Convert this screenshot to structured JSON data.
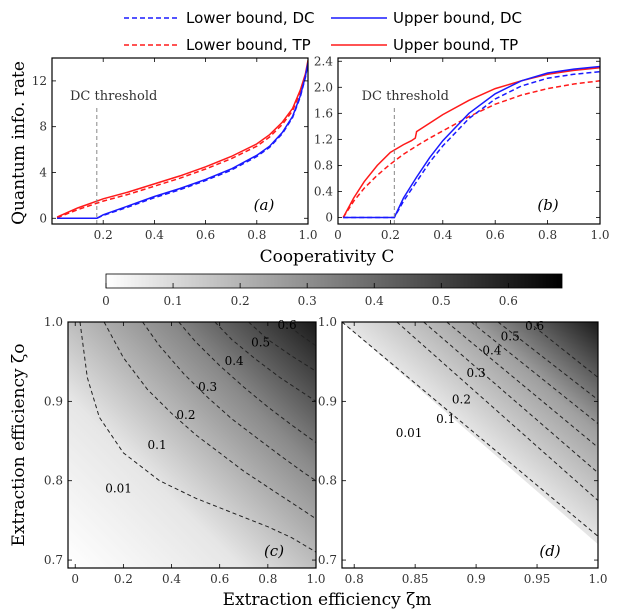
{
  "legend": [
    {
      "label": "Lower bound, DC",
      "color": "#1a1aff",
      "dash": true
    },
    {
      "label": "Upper bound, DC",
      "color": "#1a1aff",
      "dash": false
    },
    {
      "label": "Lower bound, TP",
      "color": "#ff1a1a",
      "dash": true
    },
    {
      "label": "Upper bound, TP",
      "color": "#ff1a1a",
      "dash": false
    }
  ],
  "top_ylabel": "Quantum info. rate",
  "top_xlabel": "Cooperativity C",
  "bottom_ylabel": "Extraction efficiency ζo",
  "bottom_xlabel": "Extraction efficiency ζm",
  "annotations": {
    "dc_threshold": "DC threshold"
  },
  "panel_labels": [
    "(a)",
    "(b)",
    "(c)",
    "(d)"
  ],
  "colorbar": {
    "ticks": [
      "0",
      "0.1",
      "0.2",
      "0.3",
      "0.4",
      "0.5",
      "0.6"
    ],
    "range": [
      0,
      0.68
    ],
    "colormap": "white-to-black"
  },
  "chart_data": [
    {
      "id": "a",
      "type": "line",
      "xlim": [
        0,
        1
      ],
      "ylim": [
        -0.5,
        14
      ],
      "xticks": [
        "0.2",
        "0.4",
        "0.6",
        "0.8",
        "1.0"
      ],
      "yticks": [
        "0",
        "4",
        "8",
        "12"
      ],
      "threshold_x": 0.175,
      "series": [
        {
          "name": "Upper bound, TP",
          "color": "#ff1a1a",
          "dash": false,
          "x": [
            0.02,
            0.1,
            0.2,
            0.3,
            0.4,
            0.5,
            0.6,
            0.7,
            0.8,
            0.85,
            0.9,
            0.94,
            0.97,
            0.99,
            1.0
          ],
          "y": [
            0.1,
            0.9,
            1.7,
            2.3,
            3.0,
            3.7,
            4.5,
            5.4,
            6.5,
            7.3,
            8.4,
            9.6,
            11.2,
            12.6,
            13.8
          ]
        },
        {
          "name": "Lower bound, TP",
          "color": "#ff1a1a",
          "dash": true,
          "x": [
            0.02,
            0.1,
            0.2,
            0.3,
            0.4,
            0.5,
            0.6,
            0.7,
            0.8,
            0.85,
            0.9,
            0.94,
            0.97,
            0.99,
            1.0
          ],
          "y": [
            0.05,
            0.75,
            1.5,
            2.1,
            2.8,
            3.5,
            4.3,
            5.2,
            6.3,
            7.1,
            8.2,
            9.4,
            11.0,
            12.5,
            13.6
          ]
        },
        {
          "name": "Upper bound, DC",
          "color": "#1a1aff",
          "dash": false,
          "x": [
            0.02,
            0.175,
            0.2,
            0.3,
            0.4,
            0.5,
            0.6,
            0.7,
            0.8,
            0.85,
            0.9,
            0.94,
            0.97,
            0.99,
            1.0
          ],
          "y": [
            0,
            0,
            0.3,
            1.1,
            1.9,
            2.6,
            3.4,
            4.3,
            5.5,
            6.3,
            7.5,
            8.9,
            10.7,
            12.4,
            13.6
          ]
        },
        {
          "name": "Lower bound, DC",
          "color": "#1a1aff",
          "dash": true,
          "x": [
            0.02,
            0.175,
            0.2,
            0.3,
            0.4,
            0.5,
            0.6,
            0.7,
            0.8,
            0.85,
            0.9,
            0.94,
            0.97,
            0.99,
            1.0
          ],
          "y": [
            0,
            0,
            0.25,
            1.0,
            1.8,
            2.5,
            3.3,
            4.2,
            5.4,
            6.2,
            7.4,
            8.8,
            10.6,
            12.3,
            13.5
          ]
        }
      ]
    },
    {
      "id": "b",
      "type": "line",
      "xlim": [
        0,
        1
      ],
      "ylim": [
        -0.1,
        2.45
      ],
      "xticks": [
        "0",
        "0.2",
        "0.4",
        "0.6",
        "0.8",
        "1.0"
      ],
      "yticks": [
        "0",
        "0.4",
        "0.8",
        "1.2",
        "1.6",
        "2.0",
        "2.4"
      ],
      "threshold_x": 0.215,
      "series": [
        {
          "name": "Upper bound, TP",
          "color": "#ff1a1a",
          "dash": false,
          "x": [
            0.02,
            0.06,
            0.1,
            0.15,
            0.2,
            0.25,
            0.28,
            0.295,
            0.3,
            0.35,
            0.4,
            0.5,
            0.6,
            0.7,
            0.8,
            0.9,
            1.0
          ],
          "y": [
            0,
            0.3,
            0.55,
            0.8,
            1.0,
            1.12,
            1.18,
            1.22,
            1.32,
            1.45,
            1.58,
            1.8,
            1.98,
            2.1,
            2.2,
            2.26,
            2.3
          ]
        },
        {
          "name": "Lower bound, TP",
          "color": "#ff1a1a",
          "dash": true,
          "x": [
            0.02,
            0.06,
            0.1,
            0.15,
            0.2,
            0.25,
            0.3,
            0.35,
            0.4,
            0.5,
            0.6,
            0.7,
            0.8,
            0.9,
            1.0
          ],
          "y": [
            0,
            0.25,
            0.45,
            0.65,
            0.82,
            0.97,
            1.1,
            1.22,
            1.33,
            1.55,
            1.74,
            1.88,
            1.98,
            2.05,
            2.1
          ]
        },
        {
          "name": "Upper bound, DC",
          "color": "#1a1aff",
          "dash": false,
          "x": [
            0.02,
            0.215,
            0.25,
            0.3,
            0.35,
            0.4,
            0.5,
            0.6,
            0.7,
            0.8,
            0.9,
            1.0
          ],
          "y": [
            0,
            0,
            0.3,
            0.62,
            0.92,
            1.18,
            1.6,
            1.9,
            2.1,
            2.22,
            2.28,
            2.32
          ]
        },
        {
          "name": "Lower bound, DC",
          "color": "#1a1aff",
          "dash": true,
          "x": [
            0.02,
            0.215,
            0.25,
            0.3,
            0.35,
            0.4,
            0.5,
            0.6,
            0.7,
            0.8,
            0.9,
            1.0
          ],
          "y": [
            0,
            0,
            0.25,
            0.55,
            0.85,
            1.1,
            1.52,
            1.82,
            2.02,
            2.14,
            2.2,
            2.24
          ]
        }
      ]
    },
    {
      "id": "c",
      "type": "heatmap",
      "xlim": [
        -0.03,
        1.0
      ],
      "ylim": [
        0.69,
        1.0
      ],
      "xticks": [
        "0",
        "0.2",
        "0.4",
        "0.6",
        "0.8",
        "1.0"
      ],
      "yticks": [
        "0.7",
        "0.8",
        "0.9",
        "1.0"
      ],
      "contours": [
        {
          "label": "0.01",
          "x": [
            0.02,
            0.05,
            0.1,
            0.2,
            0.35,
            0.5,
            0.65,
            0.8,
            0.9,
            1.0
          ],
          "y": [
            1.0,
            0.93,
            0.88,
            0.835,
            0.8,
            0.778,
            0.76,
            0.742,
            0.728,
            0.71
          ],
          "label_at": [
            0.18,
            0.785
          ]
        },
        {
          "label": "0.1",
          "x": [
            0.12,
            0.2,
            0.3,
            0.4,
            0.5,
            0.6,
            0.7,
            0.8,
            0.9,
            1.0
          ],
          "y": [
            1.0,
            0.955,
            0.915,
            0.885,
            0.858,
            0.835,
            0.812,
            0.792,
            0.772,
            0.752
          ],
          "label_at": [
            0.34,
            0.84
          ]
        },
        {
          "label": "0.2",
          "x": [
            0.28,
            0.35,
            0.45,
            0.55,
            0.65,
            0.75,
            0.85,
            0.95,
            1.0
          ],
          "y": [
            1.0,
            0.97,
            0.935,
            0.905,
            0.878,
            0.855,
            0.832,
            0.81,
            0.8
          ],
          "label_at": [
            0.46,
            0.878
          ]
        },
        {
          "label": "0.3",
          "x": [
            0.43,
            0.5,
            0.6,
            0.7,
            0.8,
            0.9,
            1.0
          ],
          "y": [
            1.0,
            0.975,
            0.945,
            0.918,
            0.893,
            0.87,
            0.848
          ],
          "label_at": [
            0.55,
            0.913
          ]
        },
        {
          "label": "0.4",
          "x": [
            0.58,
            0.65,
            0.75,
            0.85,
            0.95,
            1.0
          ],
          "y": [
            1.0,
            0.978,
            0.953,
            0.93,
            0.91,
            0.9
          ],
          "label_at": [
            0.66,
            0.946
          ]
        },
        {
          "label": "0.5",
          "x": [
            0.72,
            0.8,
            0.9,
            1.0
          ],
          "y": [
            1.0,
            0.978,
            0.957,
            0.938
          ],
          "label_at": [
            0.77,
            0.969
          ]
        },
        {
          "label": "0.6",
          "x": [
            0.87,
            0.93,
            1.0
          ],
          "y": [
            1.0,
            0.985,
            0.97
          ],
          "label_at": [
            0.88,
            0.991
          ]
        }
      ]
    },
    {
      "id": "d",
      "type": "heatmap",
      "xlim": [
        0.79,
        1.0
      ],
      "ylim": [
        0.69,
        1.0
      ],
      "xticks": [
        "0.8",
        "0.85",
        "0.9",
        "0.95",
        "1.0"
      ],
      "yticks": [
        "0.7",
        "0.8",
        "0.9",
        "1.0"
      ],
      "contours": [
        {
          "label": "0.01",
          "x": [
            0.79,
            1.0
          ],
          "y": [
            1.0,
            0.73
          ],
          "label_at": [
            0.845,
            0.855
          ]
        },
        {
          "label": "0.1",
          "x": [
            0.835,
            1.0
          ],
          "y": [
            1.0,
            0.775
          ],
          "label_at": [
            0.875,
            0.873
          ]
        },
        {
          "label": "0.2",
          "x": [
            0.857,
            1.0
          ],
          "y": [
            1.0,
            0.81
          ],
          "label_at": [
            0.888,
            0.897
          ]
        },
        {
          "label": "0.3",
          "x": [
            0.876,
            1.0
          ],
          "y": [
            1.0,
            0.842
          ],
          "label_at": [
            0.9,
            0.931
          ]
        },
        {
          "label": "0.4",
          "x": [
            0.896,
            1.0
          ],
          "y": [
            1.0,
            0.872
          ],
          "label_at": [
            0.913,
            0.959
          ]
        },
        {
          "label": "0.5",
          "x": [
            0.918,
            1.0
          ],
          "y": [
            1.0,
            0.902
          ],
          "label_at": [
            0.928,
            0.977
          ]
        },
        {
          "label": "0.6",
          "x": [
            0.943,
            1.0
          ],
          "y": [
            1.0,
            0.93
          ],
          "label_at": [
            0.948,
            0.99
          ]
        }
      ]
    }
  ]
}
